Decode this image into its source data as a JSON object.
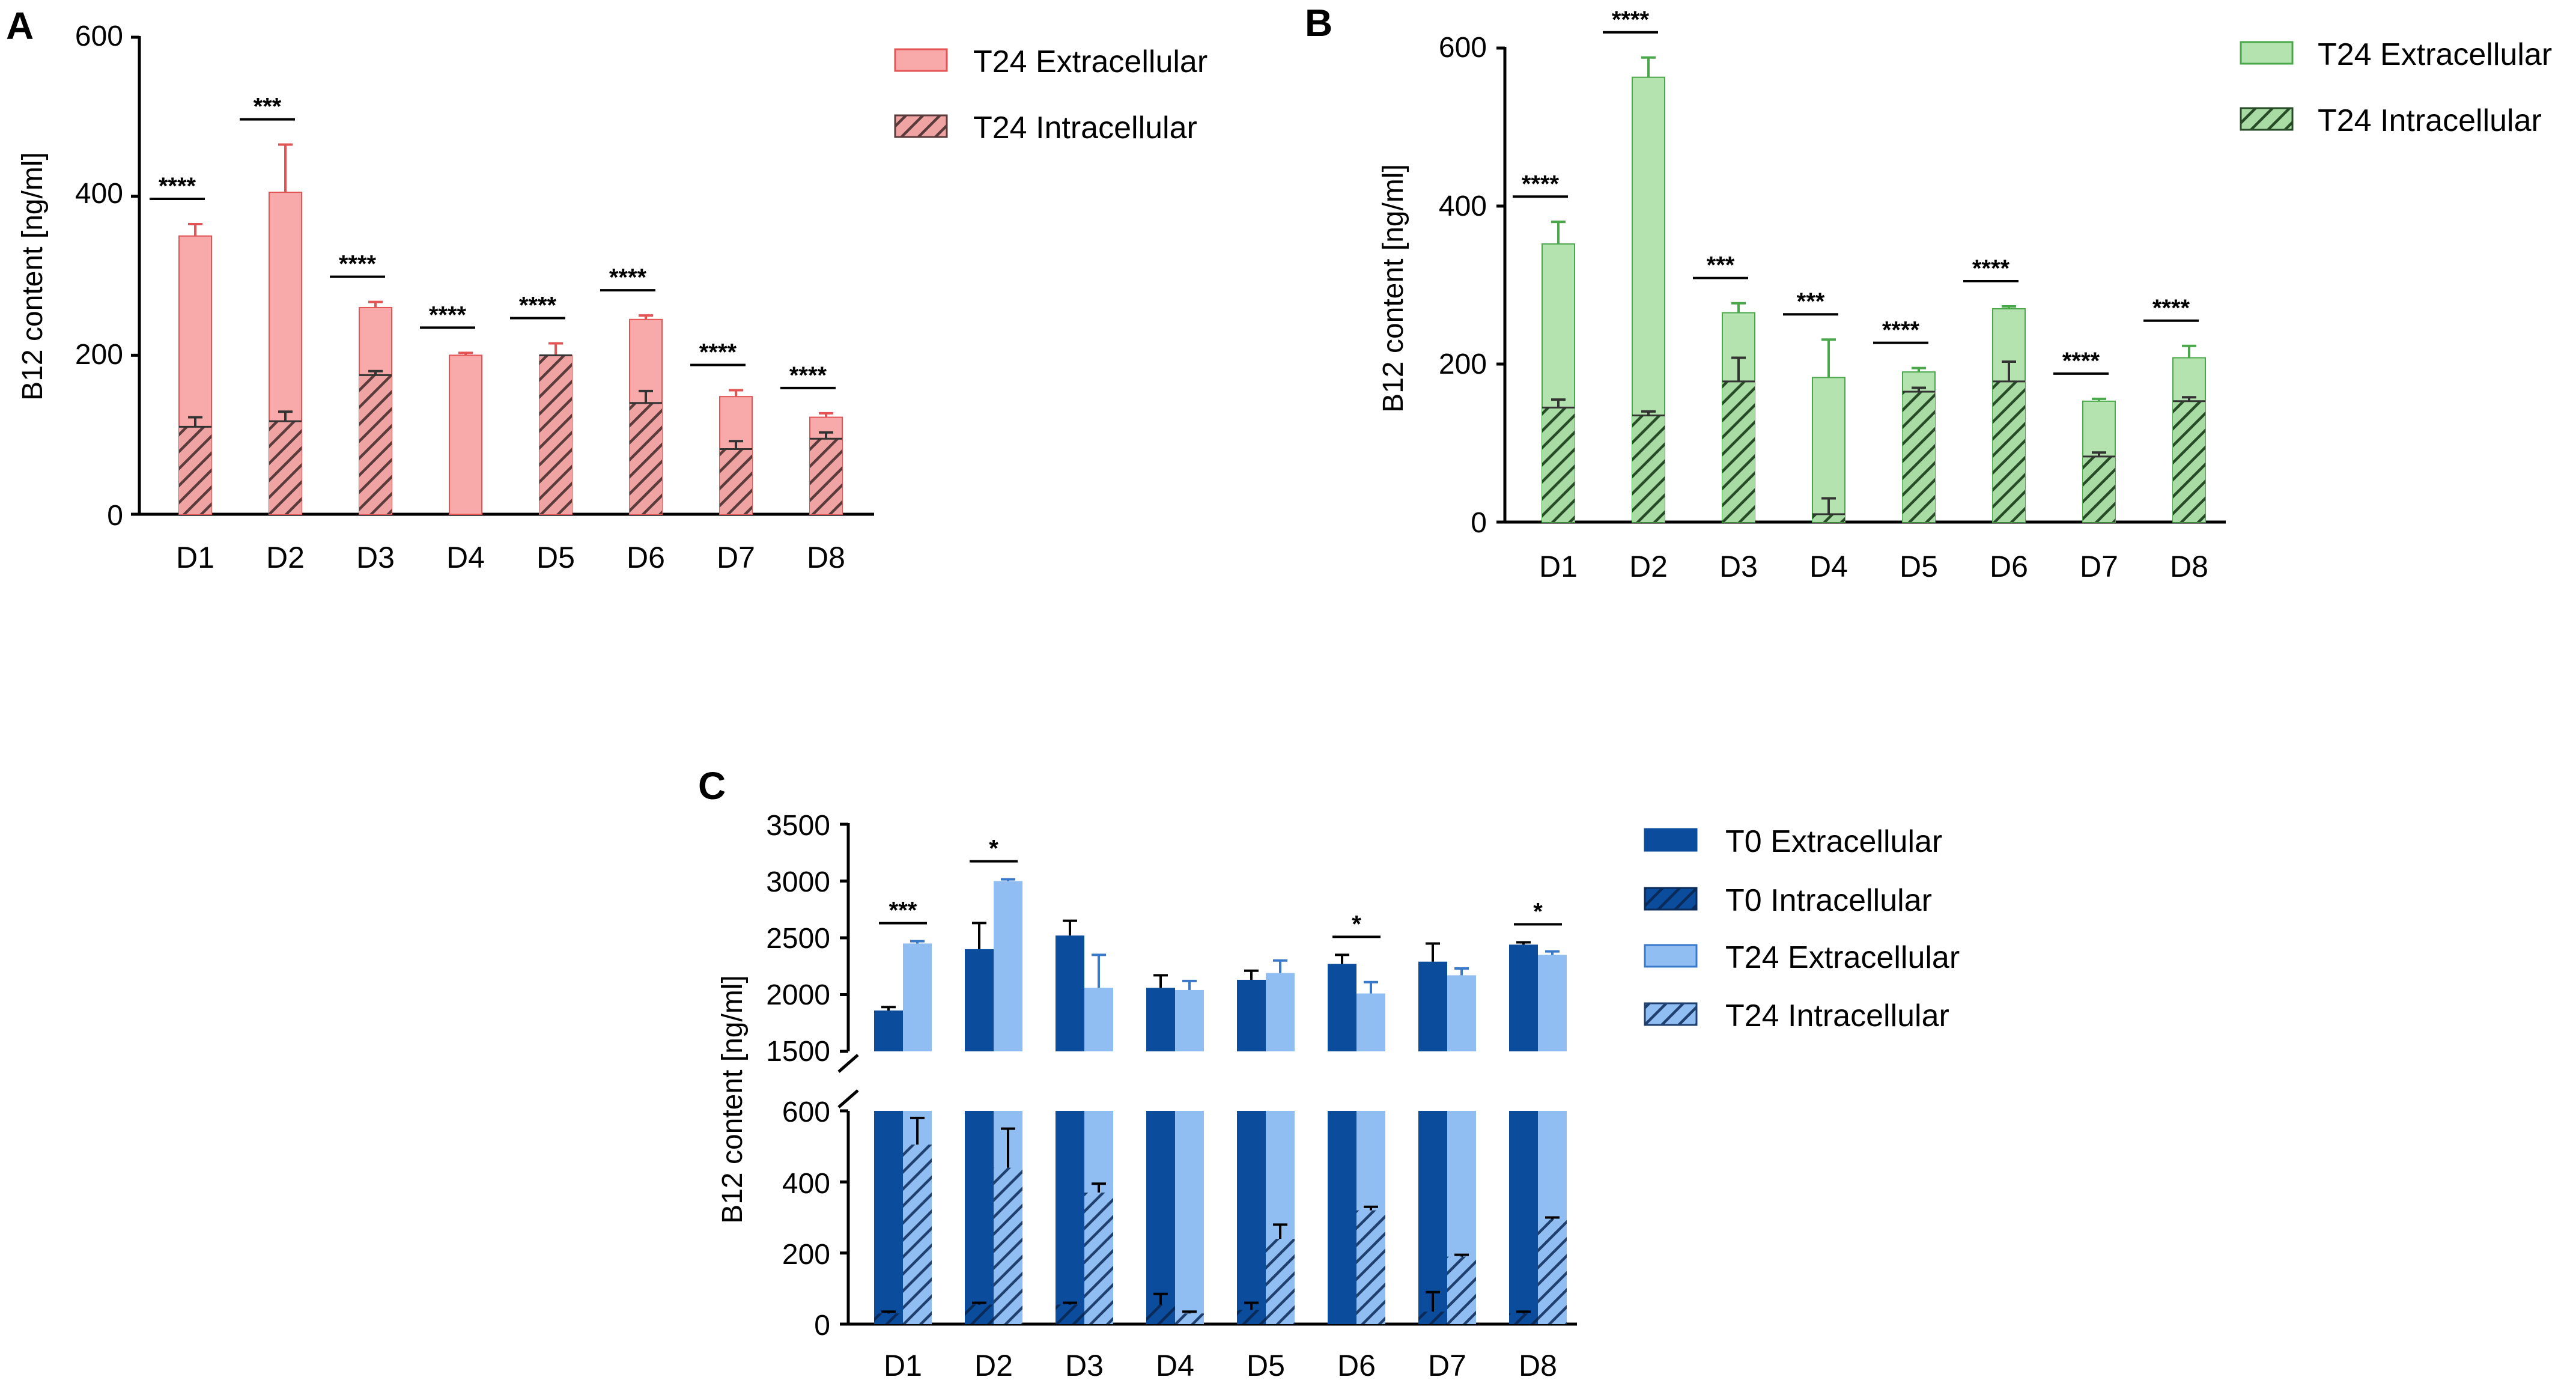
{
  "chart_data": [
    {
      "panel": "A",
      "type": "bar",
      "ylabel": "B12 content [ng/ml]",
      "ylim": [
        0,
        600
      ],
      "yticks": [
        0,
        200,
        400,
        600
      ],
      "categories": [
        "D1",
        "D2",
        "D3",
        "D4",
        "D5",
        "D6",
        "D7",
        "D8"
      ],
      "series": [
        {
          "name": "T24 Extracellular",
          "values": [
            350,
            405,
            260,
            200,
            200,
            245,
            148,
            122
          ],
          "errors": [
            15,
            60,
            7,
            3,
            15,
            5,
            8,
            5
          ],
          "color": "#f8a9a9",
          "edge": "#e35555",
          "hatch": false
        },
        {
          "name": "T24 Intracellular",
          "values": [
            110,
            117,
            175,
            0,
            200,
            140,
            82,
            95
          ],
          "errors": [
            12,
            12,
            5,
            0,
            0,
            15,
            10,
            8
          ],
          "color": "#f0a3a3",
          "edge": "#5a3b3b",
          "hatch": true
        }
      ],
      "significance": [
        "****",
        "***",
        "****",
        "****",
        "****",
        "****",
        "****",
        "****"
      ]
    },
    {
      "panel": "B",
      "type": "bar",
      "ylabel": "B12 content [ng/ml]",
      "ylim": [
        0,
        600
      ],
      "yticks": [
        0,
        200,
        400,
        600
      ],
      "categories": [
        "D1",
        "D2",
        "D3",
        "D4",
        "D5",
        "D6",
        "D7",
        "D8"
      ],
      "series": [
        {
          "name": "T24 Extracellular",
          "values": [
            352,
            563,
            265,
            183,
            190,
            270,
            153,
            208
          ],
          "errors": [
            28,
            25,
            12,
            48,
            5,
            3,
            3,
            15
          ],
          "color": "#b4e3b0",
          "edge": "#4aa84a",
          "hatch": false
        },
        {
          "name": "T24 Intracellular",
          "values": [
            145,
            135,
            178,
            10,
            165,
            178,
            83,
            153
          ],
          "errors": [
            10,
            5,
            30,
            20,
            5,
            25,
            5,
            5
          ],
          "color": "#a9dca4",
          "edge": "#274a27",
          "hatch": true
        }
      ],
      "significance": [
        "****",
        "****",
        "***",
        "***",
        "****",
        "****",
        "****",
        "****"
      ]
    },
    {
      "panel": "C",
      "type": "bar",
      "ylabel": "B12 content [ng/ml]",
      "broken_axis": {
        "lower": [
          0,
          600
        ],
        "upper": [
          1500,
          3500
        ]
      },
      "yticks_lower": [
        0,
        200,
        400,
        600
      ],
      "yticks_upper": [
        1500,
        2000,
        2500,
        3000,
        3500
      ],
      "categories": [
        "D1",
        "D2",
        "D3",
        "D4",
        "D5",
        "D6",
        "D7",
        "D8"
      ],
      "series": [
        {
          "name": "T0 Extracellular",
          "values": [
            1860,
            2400,
            2520,
            2060,
            2130,
            2270,
            2290,
            2440
          ],
          "errors": [
            30,
            230,
            130,
            110,
            80,
            80,
            160,
            20
          ],
          "color": "#0b4c9c",
          "edge": "#0b4c9c",
          "hatch": false
        },
        {
          "name": "T0 Intracellular",
          "values": [
            30,
            55,
            55,
            55,
            40,
            0,
            35,
            30
          ],
          "errors": [
            5,
            5,
            5,
            30,
            20,
            0,
            55,
            5
          ],
          "color": "#0b4c9c",
          "edge": "#0a2a5a",
          "hatch": true
        },
        {
          "name": "T24 Extracellular",
          "values": [
            2450,
            3000,
            2060,
            2040,
            2190,
            2010,
            2170,
            2350
          ],
          "errors": [
            20,
            15,
            290,
            80,
            110,
            100,
            60,
            30
          ],
          "color": "#90bef2",
          "edge": "#3a78c9",
          "hatch": false
        },
        {
          "name": "T24 Intracellular",
          "values": [
            505,
            440,
            370,
            30,
            240,
            320,
            190,
            295
          ],
          "errors": [
            75,
            110,
            25,
            5,
            40,
            10,
            5,
            5
          ],
          "color": "#90bef2",
          "edge": "#1f3f6e",
          "hatch": true
        }
      ],
      "significance": [
        "***",
        "*",
        "",
        "",
        "",
        "*",
        "",
        "*"
      ]
    }
  ],
  "panels": {
    "a": {
      "label": "A",
      "ytick_labels": [
        "0",
        "200",
        "400",
        "600"
      ]
    },
    "b": {
      "label": "B",
      "ytick_labels": [
        "0",
        "200",
        "400",
        "600"
      ]
    },
    "c": {
      "label": "C",
      "ytick_labels_lower": [
        "0",
        "200",
        "400",
        "600"
      ],
      "ytick_labels_upper": [
        "1500",
        "2000",
        "2500",
        "3000",
        "3500"
      ]
    }
  }
}
